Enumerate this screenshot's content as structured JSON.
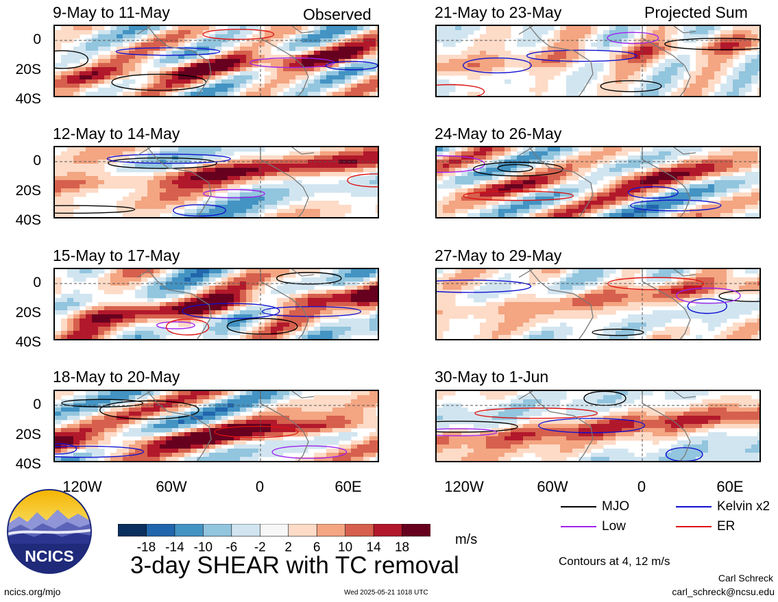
{
  "chart_data": {
    "type": "heatmap",
    "title": "3-day SHEAR with TC removal",
    "panel_group_labels": {
      "left": "Observed",
      "right": "Projected Sum"
    },
    "panels": [
      {
        "label": "9-May to 11-May",
        "column": "left",
        "row": 0
      },
      {
        "label": "12-May to 14-May",
        "column": "left",
        "row": 1
      },
      {
        "label": "15-May to 17-May",
        "column": "left",
        "row": 2
      },
      {
        "label": "18-May to 20-May",
        "column": "left",
        "row": 3
      },
      {
        "label": "21-May to 23-May",
        "column": "right",
        "row": 0
      },
      {
        "label": "24-May to 26-May",
        "column": "right",
        "row": 1
      },
      {
        "label": "27-May to 29-May",
        "column": "right",
        "row": 2
      },
      {
        "label": "30-May to 1-Jun",
        "column": "right",
        "row": 3
      }
    ],
    "x_ticks": [
      "120W",
      "60W",
      "0",
      "60E"
    ],
    "y_ticks": [
      "0",
      "20S",
      "40S"
    ],
    "colorbar": {
      "unit": "m/s",
      "tick_labels": [
        "-18",
        "-14",
        "-10",
        "-6",
        "-2",
        "2",
        "6",
        "10",
        "14",
        "18"
      ],
      "colors": [
        "#0b2f5e",
        "#2166ac",
        "#4393c3",
        "#92c5de",
        "#d1e5f0",
        "#f7f7f7",
        "#fddbc7",
        "#f4a582",
        "#d6604d",
        "#b2182b",
        "#67001f"
      ]
    },
    "contour_legend": [
      {
        "name": "MJO",
        "color": "#000000"
      },
      {
        "name": "Kelvin x2",
        "color": "#1010d0"
      },
      {
        "name": "Low",
        "color": "#a020f0"
      },
      {
        "name": "ER",
        "color": "#dd1111"
      }
    ],
    "contour_note": "Contours at 4, 12 m/s"
  },
  "footer": {
    "logo_text": "NCICS",
    "url": "ncics.org/mjo",
    "timestamp": "Wed 2025-05-21 1018 UTC",
    "author": "Carl Schreck",
    "email": "carl_schreck@ncsu.edu"
  }
}
